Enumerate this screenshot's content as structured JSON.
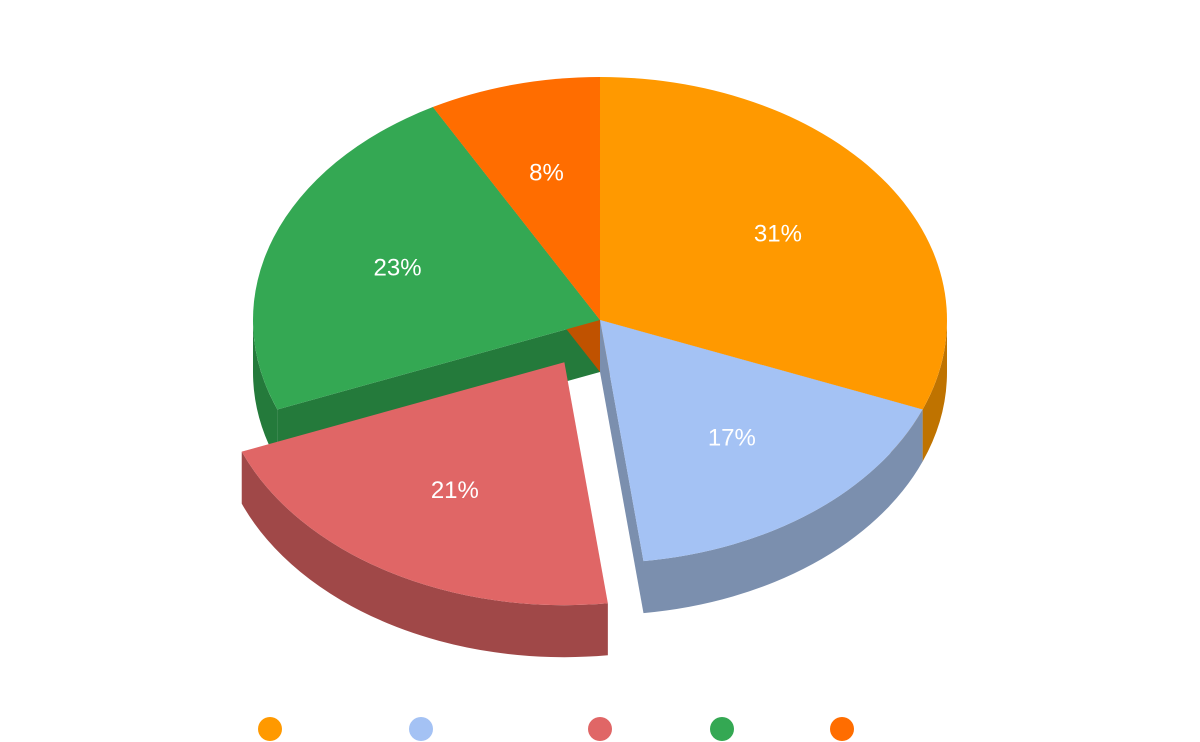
{
  "chart_data": {
    "type": "pie",
    "style": "3d",
    "slices": [
      {
        "label": "31%",
        "value": 31,
        "color": "#ff9900",
        "side_color": "#bf7300",
        "exploded": false
      },
      {
        "label": "17%",
        "value": 17,
        "color": "#a4c2f4",
        "side_color": "#7b8fae",
        "exploded": false
      },
      {
        "label": "21%",
        "value": 21,
        "color": "#e06666",
        "side_color": "#a04848",
        "exploded": true
      },
      {
        "label": "23%",
        "value": 23,
        "color": "#34a853",
        "side_color": "#247a3b",
        "exploded": false
      },
      {
        "label": "8%",
        "value": 8,
        "color": "#ff6d00",
        "side_color": "#c05200",
        "exploded": false
      }
    ],
    "legend": {
      "placement": "bottom",
      "show_text": false
    },
    "start_angle": "top",
    "direction": "clockwise"
  }
}
